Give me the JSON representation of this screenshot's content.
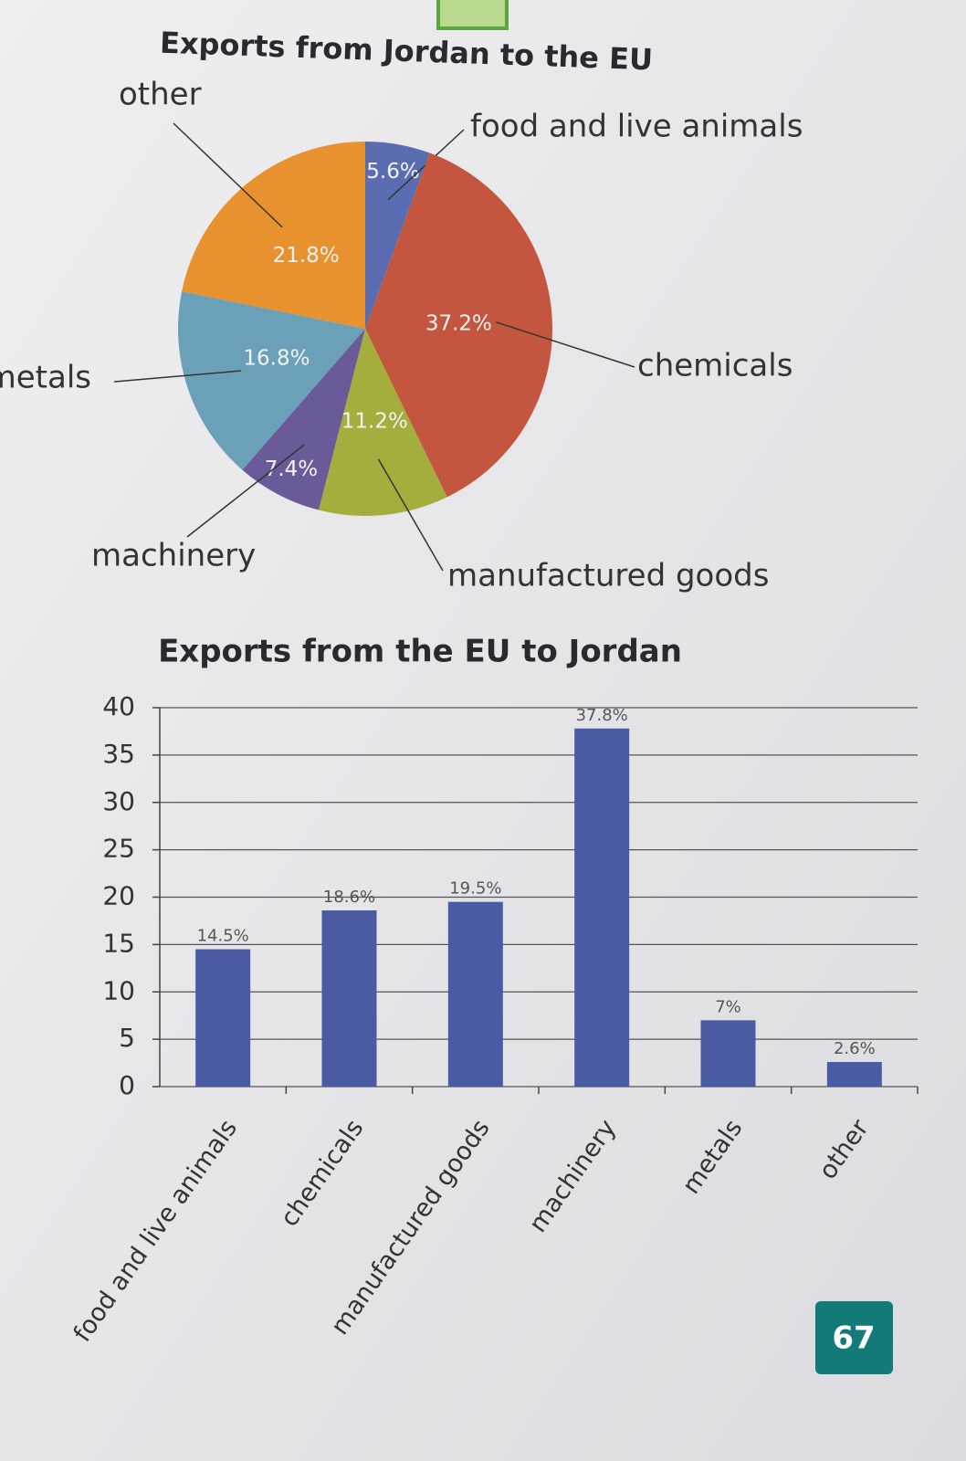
{
  "chart_data": [
    {
      "type": "pie",
      "title": "Exports from Jordan to the EU",
      "categories": [
        "food and live animals",
        "chemicals",
        "manufactured goods",
        "machinery",
        "metals",
        "other"
      ],
      "values": [
        5.6,
        37.2,
        11.2,
        7.4,
        16.8,
        21.8
      ],
      "value_labels": [
        "5.6%",
        "37.2%",
        "11.2%",
        "7.4%",
        "16.8%",
        "21.8%"
      ],
      "colors": [
        "#5a6db0",
        "#c4553e",
        "#a4ae3c",
        "#6a5a98",
        "#6aa1b8",
        "#e8912f"
      ]
    },
    {
      "type": "bar",
      "title": "Exports from the EU to Jordan",
      "categories": [
        "food and live animals",
        "chemicals",
        "manufactured goods",
        "machinery",
        "metals",
        "other"
      ],
      "values": [
        14.5,
        18.6,
        19.5,
        37.8,
        7,
        2.6
      ],
      "value_labels": [
        "14.5%",
        "18.6%",
        "19.5%",
        "37.8%",
        "7%",
        "2.6%"
      ],
      "color": "#4b5ba3",
      "ylim": [
        0,
        40
      ],
      "yticks": [
        0,
        5,
        10,
        15,
        20,
        25,
        30,
        35,
        40
      ],
      "grid": true
    }
  ],
  "page_number": "67"
}
